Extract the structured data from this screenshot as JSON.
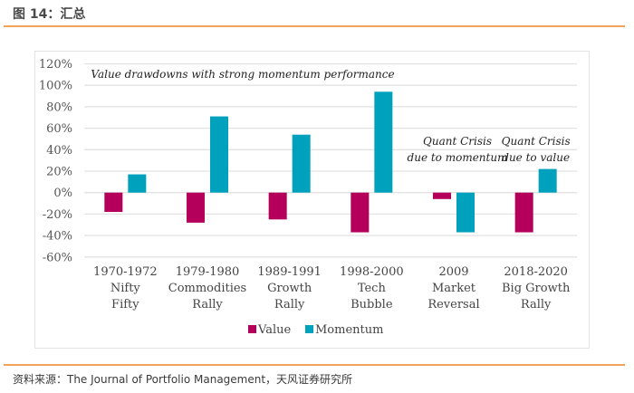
{
  "figure": {
    "title": "图 14：汇总",
    "source": "资料来源：The Journal of Portfolio Management，天风证券研究所",
    "accent_color": "#f4a15a"
  },
  "chart_data": {
    "type": "bar",
    "title": "",
    "xlabel": "",
    "ylabel": "",
    "ylim": [
      -60,
      120
    ],
    "yticks": [
      120,
      100,
      80,
      60,
      40,
      20,
      0,
      -20,
      -40,
      -60
    ],
    "ytick_labels": [
      "120%",
      "100%",
      "80%",
      "60%",
      "40%",
      "20%",
      "0%",
      "-20%",
      "-40%",
      "-60%"
    ],
    "grid": true,
    "categories": [
      [
        "1970-1972",
        "Nifty",
        "Fifty"
      ],
      [
        "1979-1980",
        "Commodities",
        "Rally"
      ],
      [
        "1989-1991",
        "Growth",
        "Rally"
      ],
      [
        "1998-2000",
        "Tech",
        "Bubble"
      ],
      [
        "2009",
        "Market",
        "Reversal"
      ],
      [
        "2018-2020",
        "Big Growth",
        "Rally"
      ]
    ],
    "series": [
      {
        "name": "Value",
        "color": "#b5005b",
        "values": [
          -18,
          -28,
          -25,
          -37,
          -6,
          -37
        ]
      },
      {
        "name": "Momentum",
        "color": "#00a1bd",
        "values": [
          17,
          71,
          54,
          94,
          -37,
          22
        ]
      }
    ],
    "legend": {
      "placement": "bottom",
      "entries": [
        "Value",
        "Momentum"
      ]
    },
    "annotations": [
      {
        "text": "Value drawdowns with strong momentum performance",
        "anchor": "top-center"
      },
      {
        "text": [
          "Quant Crisis",
          "due to momentum"
        ],
        "category_index": 4
      },
      {
        "text": [
          "Quant Crisis",
          "due to value"
        ],
        "category_index": 5
      }
    ]
  }
}
